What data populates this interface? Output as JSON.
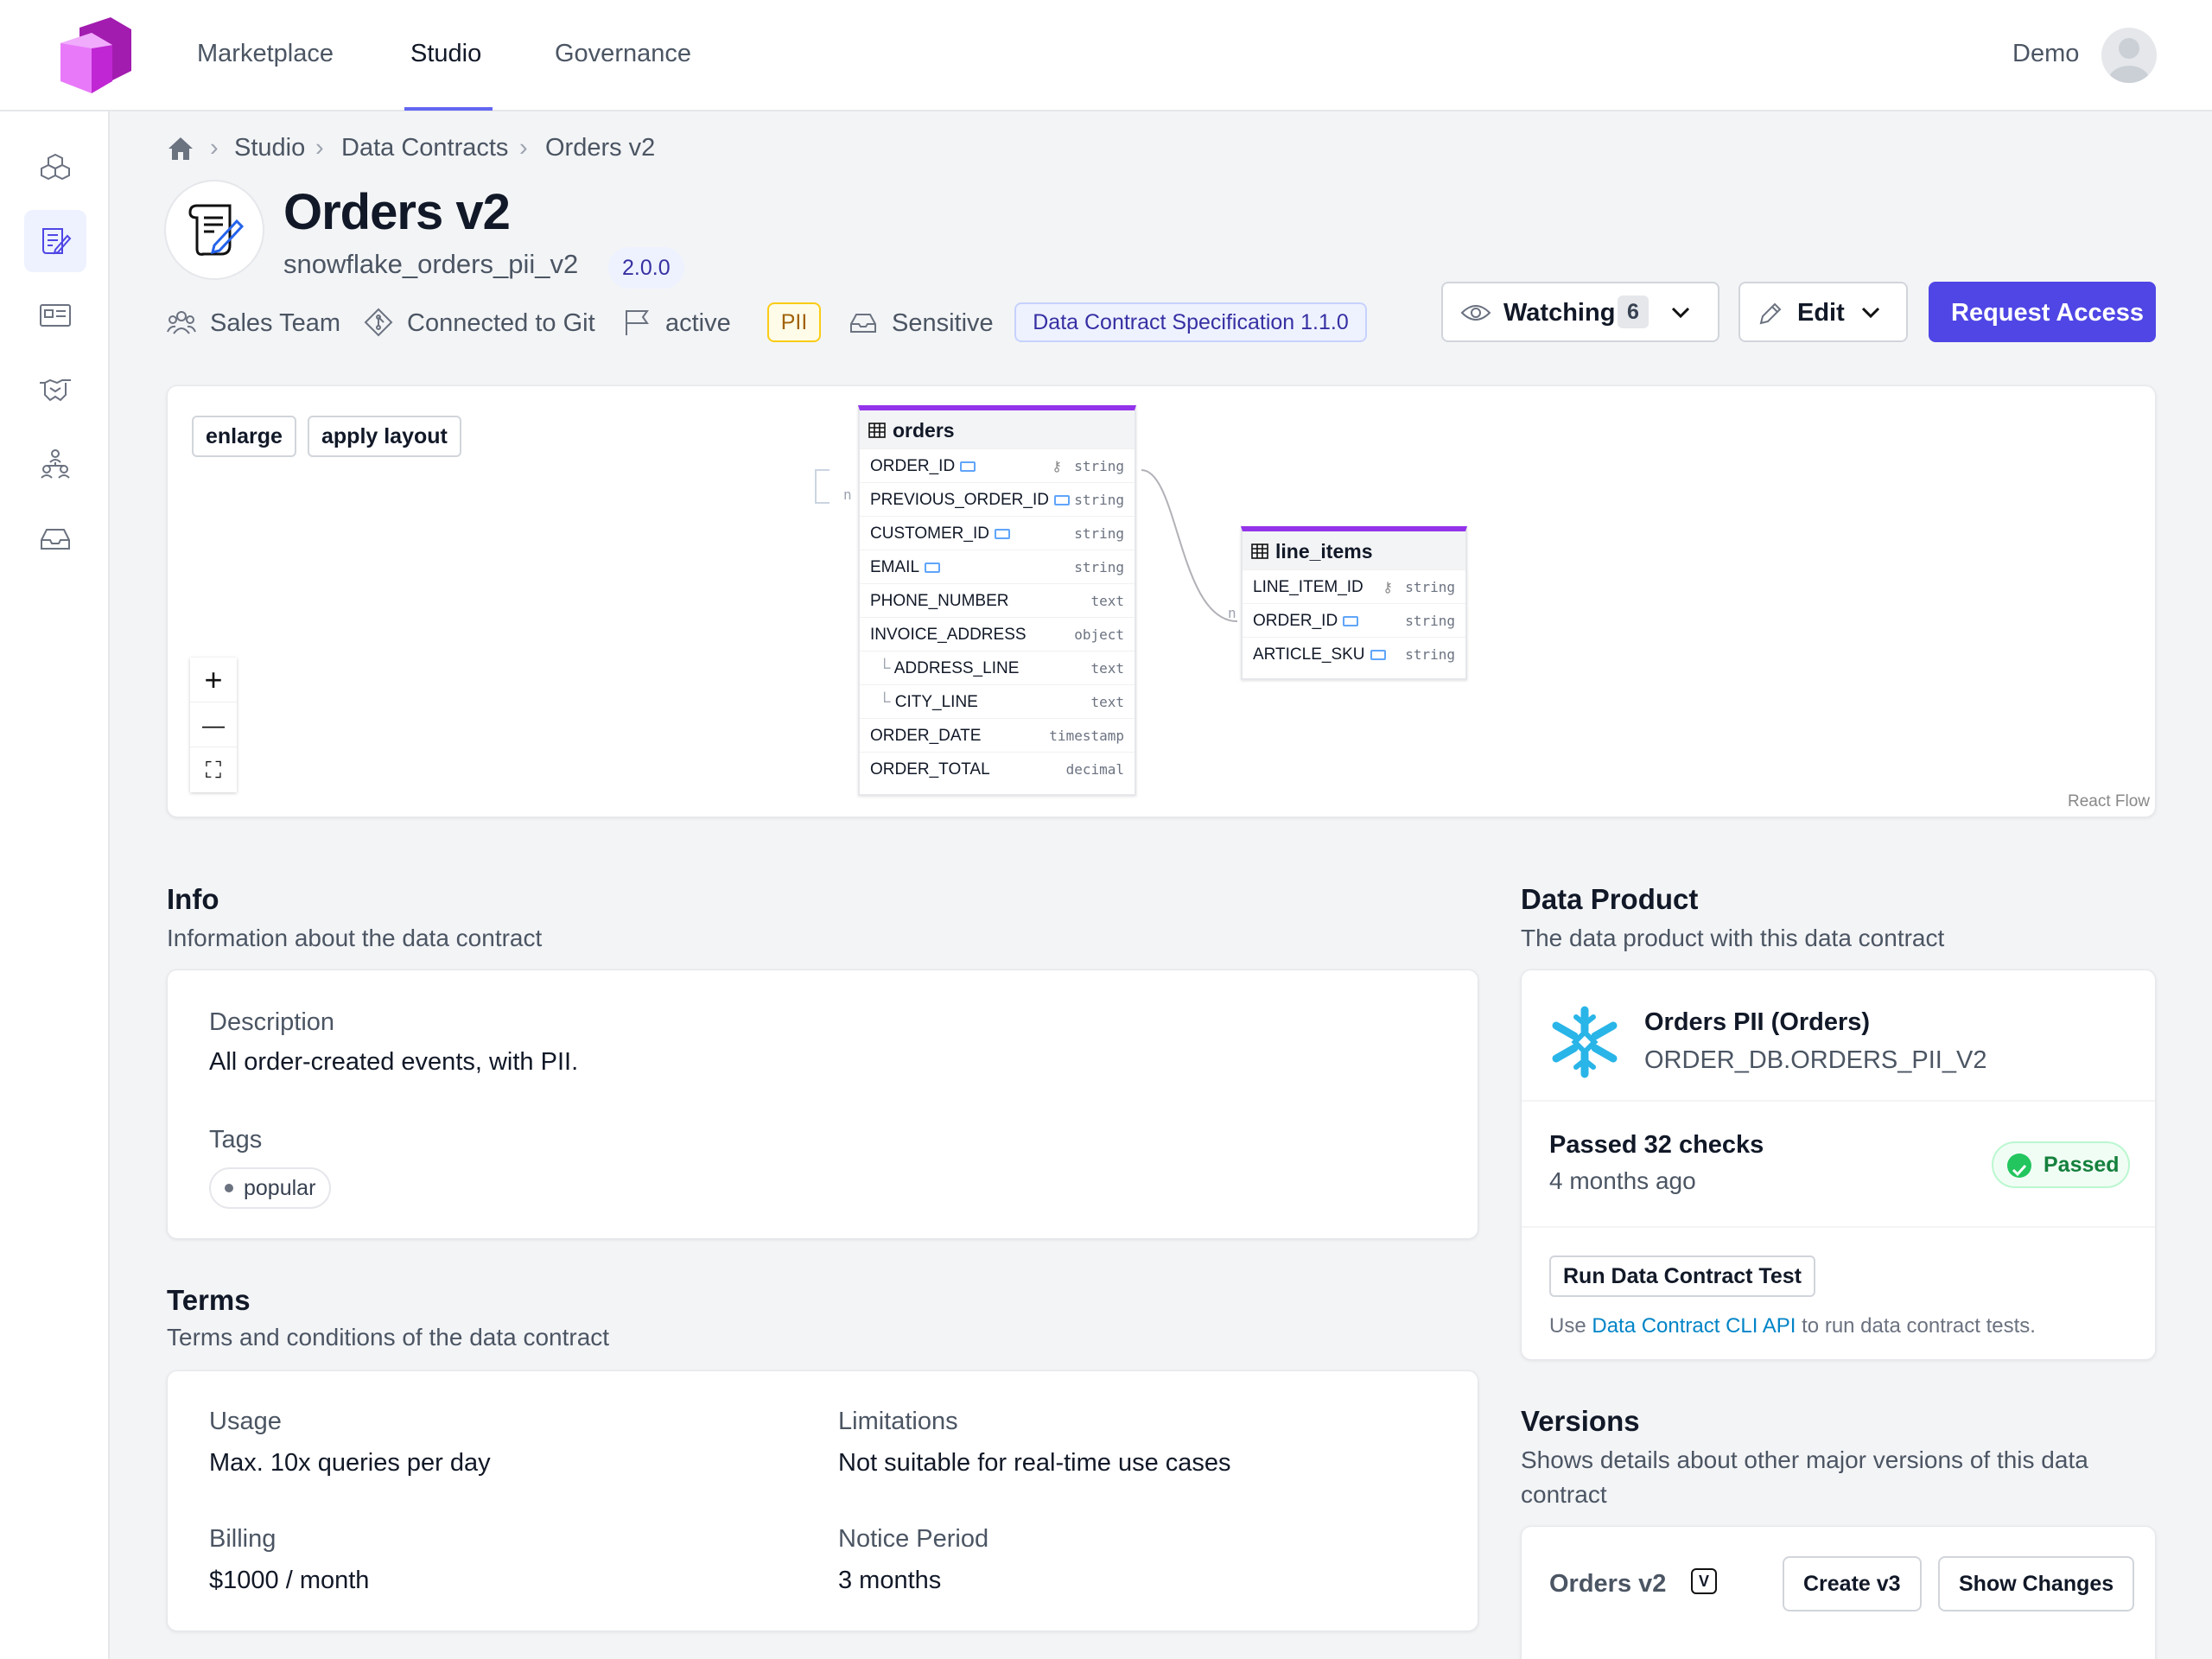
{
  "nav": {
    "items": [
      "Marketplace",
      "Studio",
      "Governance"
    ],
    "active": "Studio",
    "user": "Demo"
  },
  "breadcrumb": [
    "Studio",
    "Data Contracts",
    "Orders v2"
  ],
  "header": {
    "title": "Orders v2",
    "id": "snowflake_orders_pii_v2",
    "version": "2.0.0",
    "meta": {
      "team": "Sales Team",
      "git": "Connected to Git",
      "status": "active",
      "pii": "PII",
      "classification": "Sensitive",
      "spec": "Data Contract Specification 1.1.0"
    },
    "actions": {
      "watching": "Watching",
      "watch_count": "6",
      "edit": "Edit",
      "request": "Request Access"
    }
  },
  "diagram": {
    "buttons": {
      "enlarge": "enlarge",
      "apply_layout": "apply layout"
    },
    "zoom": {
      "in": "+",
      "out": "—",
      "fit": "⛶"
    },
    "attribution": "React Flow",
    "tables": [
      {
        "name": "orders",
        "fields": [
          {
            "name": "ORDER_ID",
            "type": "string",
            "pii": true,
            "key": true
          },
          {
            "name": "PREVIOUS_ORDER_ID",
            "type": "string",
            "pii": true
          },
          {
            "name": "CUSTOMER_ID",
            "type": "string",
            "pii": true
          },
          {
            "name": "EMAIL",
            "type": "string",
            "pii": true
          },
          {
            "name": "PHONE_NUMBER",
            "type": "text"
          },
          {
            "name": "INVOICE_ADDRESS",
            "type": "object"
          },
          {
            "name": "ADDRESS_LINE",
            "type": "text",
            "nested": true
          },
          {
            "name": "CITY_LINE",
            "type": "text",
            "nested": true
          },
          {
            "name": "ORDER_DATE",
            "type": "timestamp"
          },
          {
            "name": "ORDER_TOTAL",
            "type": "decimal"
          }
        ]
      },
      {
        "name": "line_items",
        "fields": [
          {
            "name": "LINE_ITEM_ID",
            "type": "string",
            "key": true
          },
          {
            "name": "ORDER_ID",
            "type": "string",
            "pii": true
          },
          {
            "name": "ARTICLE_SKU",
            "type": "string",
            "pii": true
          }
        ]
      }
    ],
    "edge_label": "n"
  },
  "info": {
    "title": "Info",
    "subtitle": "Information about the data contract",
    "description_label": "Description",
    "description": "All order-created events, with PII.",
    "tags_label": "Tags",
    "tags": [
      "popular"
    ]
  },
  "terms": {
    "title": "Terms",
    "subtitle": "Terms and conditions of the data contract",
    "usage_label": "Usage",
    "usage": "Max. 10x queries per day",
    "limitations_label": "Limitations",
    "limitations": "Not suitable for real-time use cases",
    "billing_label": "Billing",
    "billing": "$1000 / month",
    "notice_label": "Notice Period",
    "notice": "3 months"
  },
  "data_product": {
    "title": "Data Product",
    "subtitle": "The data product with this data contract",
    "name": "Orders PII (Orders)",
    "location": "ORDER_DB.ORDERS_PII_V2",
    "checks": "Passed 32 checks",
    "checks_time": "4 months ago",
    "status": "Passed",
    "run_button": "Run Data Contract Test",
    "cli_prefix": "Use ",
    "cli_link": "Data Contract CLI API",
    "cli_suffix": " to run data contract tests."
  },
  "versions": {
    "title": "Versions",
    "subtitle_line1": "Shows details about other major versions of this data",
    "subtitle_line2": "contract",
    "current": "Orders v2",
    "badge": "V",
    "create": "Create v3",
    "changes": "Show Changes"
  },
  "colors": {
    "accent": "#4f46e5",
    "entity_border": "#9333ea",
    "pii_tag": "#60a5fa",
    "passed": "#22c55e"
  }
}
